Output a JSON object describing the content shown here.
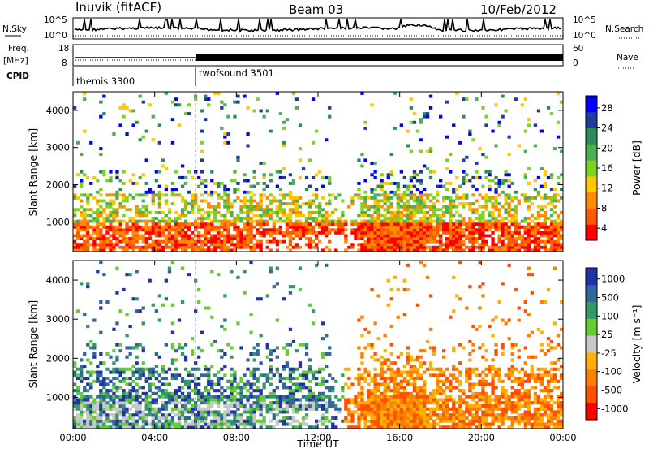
{
  "header": {
    "station": "Inuvik (fitACF)",
    "beam": "Beam 03",
    "date": "10/Feb/2012"
  },
  "top_panels": {
    "nsky_label": "N.Sky",
    "nsky_ticks": [
      "10^5",
      "10^0"
    ],
    "nsearch_label": "N.Search",
    "freq_label": "Freq.",
    "freq_unit": "[MHz]",
    "freq_ticks": [
      "18",
      "8"
    ],
    "nave_label": "Nave",
    "nave_ticks": [
      "60",
      "0"
    ],
    "cpid_label": "CPID",
    "cpid_segments": [
      {
        "name": "themis 3300",
        "start": "00:00",
        "end": "06:00"
      },
      {
        "name": "twofsound 3501",
        "start": "06:00",
        "end": "24:00"
      }
    ]
  },
  "colors": {
    "power_scale": [
      "#ff0000",
      "#ff5a00",
      "#ff8c00",
      "#ffc800",
      "#7ed321",
      "#4caf50",
      "#2e8b57",
      "#1e3c9c",
      "#0000ff"
    ],
    "velocity_scale": [
      "#ff0000",
      "#ff5000",
      "#ff8000",
      "#ffb000",
      "#c8c8c8",
      "#66cc33",
      "#339966",
      "#336699",
      "#2233aa"
    ]
  },
  "chart_data": [
    {
      "type": "heatmap",
      "panel": "power",
      "xlabel": "",
      "ylabel": "Slant Range [km]",
      "x_ticks": [
        "00:00",
        "04:00",
        "08:00",
        "12:00",
        "16:00",
        "20:00",
        "00:00"
      ],
      "y_ticks": [
        "1000",
        "2000",
        "3000",
        "4000"
      ],
      "ylim": [
        200,
        4500
      ],
      "xlim": [
        0,
        24
      ],
      "colorbar_label": "Power [dB]",
      "colorbar_ticks": [
        "28",
        "24",
        "20",
        "16",
        "12",
        "8",
        "4"
      ],
      "colorbar_range": [
        0,
        30
      ]
    },
    {
      "type": "heatmap",
      "panel": "velocity",
      "xlabel": "Time UT",
      "ylabel": "Slant Range [km]",
      "x_ticks": [
        "00:00",
        "04:00",
        "08:00",
        "12:00",
        "16:00",
        "20:00",
        "00:00"
      ],
      "y_ticks": [
        "1000",
        "2000",
        "3000",
        "4000"
      ],
      "ylim": [
        200,
        4500
      ],
      "xlim": [
        0,
        24
      ],
      "colorbar_label": "Velocity [m s⁻¹]",
      "colorbar_ticks": [
        "1000",
        "500",
        "100",
        "25",
        "-25",
        "-100",
        "-500",
        "-1000"
      ],
      "colorbar_range": [
        -1000,
        1000
      ]
    }
  ]
}
